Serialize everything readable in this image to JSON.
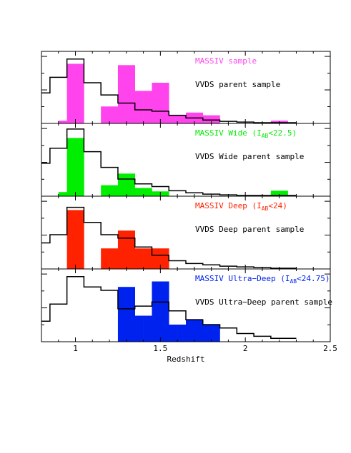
{
  "xaxis": {
    "label": "Redshift",
    "range": [
      0.8,
      2.5
    ],
    "ticks": [
      {
        "value": 1,
        "label": "1"
      },
      {
        "value": 1.5,
        "label": "1.5"
      },
      {
        "value": 2,
        "label": "2"
      },
      {
        "value": 2.5,
        "label": "2.5"
      }
    ]
  },
  "chart_data": [
    {
      "type": "bar",
      "bin_edges": [
        0.8,
        0.85,
        0.9,
        0.95,
        1.0,
        1.05,
        1.1,
        1.15,
        1.2,
        1.25,
        1.3,
        1.35,
        1.4,
        1.45,
        1.5,
        1.55,
        1.6,
        1.65,
        1.7,
        1.75,
        1.8,
        1.85,
        1.9,
        1.95,
        2.0,
        2.05,
        2.1,
        2.15,
        2.2,
        2.25,
        2.3
      ],
      "series": [
        {
          "name": "MASSIV sample",
          "color": "#ff44ee",
          "style": "filled",
          "values": [
            0,
            0,
            0.04,
            0.88,
            0.88,
            0,
            0,
            0.25,
            0.25,
            0.86,
            0.86,
            0.48,
            0.48,
            0.6,
            0.6,
            0.12,
            0.12,
            0.16,
            0.16,
            0.12,
            0.12,
            0,
            0,
            0,
            0,
            0,
            0,
            0.04,
            0.04,
            0
          ]
        },
        {
          "name": "VVDS parent sample",
          "color": "#000000",
          "style": "step",
          "values": [
            0.45,
            0.68,
            0.68,
            0.95,
            0.95,
            0.6,
            0.6,
            0.42,
            0.42,
            0.3,
            0.3,
            0.2,
            0.2,
            0.18,
            0.18,
            0.12,
            0.12,
            0.08,
            0.08,
            0.05,
            0.05,
            0.03,
            0.03,
            0.02,
            0.02,
            0.01,
            0.01,
            0.01,
            0.01,
            0.01
          ]
        }
      ]
    },
    {
      "type": "bar",
      "bin_edges": [
        0.8,
        0.85,
        0.9,
        0.95,
        1.0,
        1.05,
        1.1,
        1.15,
        1.2,
        1.25,
        1.3,
        1.35,
        1.4,
        1.45,
        1.5,
        1.55,
        1.6,
        1.65,
        1.7,
        1.75,
        1.8,
        1.85,
        1.9,
        1.95,
        2.0,
        2.05,
        2.1,
        2.15,
        2.2,
        2.25,
        2.3
      ],
      "series": [
        {
          "name": "MASSIV Wide",
          "label_suffix": "(I",
          "label_sub": "AB",
          "label_tail": "<22.5)",
          "color": "#00ee00",
          "style": "filled",
          "values": [
            0,
            0,
            0.06,
            0.85,
            0.85,
            0,
            0,
            0.16,
            0.16,
            0.33,
            0.33,
            0.12,
            0.12,
            0.07,
            0.07,
            0,
            0,
            0,
            0,
            0,
            0,
            0,
            0,
            0,
            0,
            0,
            0,
            0.08,
            0.08,
            0
          ]
        },
        {
          "name": "VVDS Wide parent sample",
          "color": "#000000",
          "style": "step",
          "values": [
            0.48,
            0.7,
            0.7,
            0.98,
            0.98,
            0.65,
            0.65,
            0.42,
            0.42,
            0.25,
            0.25,
            0.18,
            0.18,
            0.14,
            0.14,
            0.08,
            0.08,
            0.05,
            0.05,
            0.03,
            0.03,
            0.02,
            0.02,
            0.01,
            0.01,
            0.01,
            0.01,
            0.01,
            0.01,
            0.01
          ]
        }
      ]
    },
    {
      "type": "bar",
      "bin_edges": [
        0.8,
        0.85,
        0.9,
        0.95,
        1.0,
        1.05,
        1.1,
        1.15,
        1.2,
        1.25,
        1.3,
        1.35,
        1.4,
        1.45,
        1.5,
        1.55,
        1.6,
        1.65,
        1.7,
        1.75,
        1.8,
        1.85,
        1.9,
        1.95,
        2.0,
        2.05,
        2.1,
        2.15,
        2.2,
        2.25,
        2.3
      ],
      "series": [
        {
          "name": "MASSIV Deep",
          "label_suffix": "(I",
          "label_sub": "AB",
          "label_tail": "<24)",
          "color": "#ff2200",
          "style": "filled",
          "values": [
            0,
            0,
            0,
            0.86,
            0.86,
            0,
            0,
            0.3,
            0.3,
            0.56,
            0.56,
            0.3,
            0.3,
            0.3,
            0.3,
            0,
            0,
            0,
            0,
            0,
            0,
            0,
            0,
            0,
            0,
            0,
            0,
            0,
            0,
            0
          ]
        },
        {
          "name": "VVDS Deep parent sample",
          "color": "#000000",
          "style": "step",
          "values": [
            0.38,
            0.5,
            0.5,
            0.9,
            0.9,
            0.68,
            0.68,
            0.5,
            0.5,
            0.45,
            0.45,
            0.32,
            0.32,
            0.2,
            0.2,
            0.12,
            0.12,
            0.08,
            0.08,
            0.06,
            0.06,
            0.04,
            0.04,
            0.03,
            0.03,
            0.02,
            0.02,
            0.01,
            0.01,
            0.01
          ]
        }
      ]
    },
    {
      "type": "bar",
      "bin_edges": [
        0.8,
        0.85,
        0.9,
        0.95,
        1.0,
        1.05,
        1.1,
        1.15,
        1.2,
        1.25,
        1.3,
        1.35,
        1.4,
        1.45,
        1.5,
        1.55,
        1.6,
        1.65,
        1.7,
        1.75,
        1.8,
        1.85,
        1.9,
        1.95,
        2.0,
        2.05,
        2.1,
        2.15,
        2.2,
        2.25,
        2.3
      ],
      "series": [
        {
          "name": "MASSIV Ultra−Deep",
          "label_suffix": "(I",
          "label_sub": "AB",
          "label_tail": "<24.75)",
          "color": "#0022ee",
          "style": "filled",
          "values": [
            0,
            0,
            0,
            0,
            0,
            0,
            0,
            0,
            0,
            0.8,
            0.8,
            0.38,
            0.38,
            0.88,
            0.88,
            0.25,
            0.25,
            0.33,
            0.33,
            0.25,
            0.25,
            0,
            0,
            0,
            0,
            0,
            0,
            0,
            0,
            0
          ]
        },
        {
          "name": "VVDS Ultra−Deep parent sample",
          "color": "#000000",
          "style": "step",
          "values": [
            0.3,
            0.55,
            0.55,
            0.95,
            0.95,
            0.8,
            0.8,
            0.75,
            0.75,
            0.48,
            0.48,
            0.52,
            0.52,
            0.58,
            0.58,
            0.45,
            0.45,
            0.32,
            0.32,
            0.25,
            0.25,
            0.2,
            0.2,
            0.12,
            0.12,
            0.08,
            0.08,
            0.05,
            0.05,
            0.05
          ]
        }
      ]
    }
  ]
}
